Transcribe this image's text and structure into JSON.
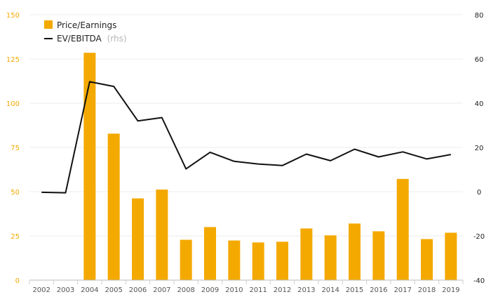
{
  "chart_data": {
    "type": "bar",
    "categories": [
      "2002",
      "2003",
      "2004",
      "2005",
      "2006",
      "2007",
      "2008",
      "2009",
      "2010",
      "2011",
      "2012",
      "2013",
      "2014",
      "2015",
      "2016",
      "2017",
      "2018",
      "2019"
    ],
    "series": [
      {
        "name": "Price/Earnings",
        "type": "bar",
        "axis": "left",
        "color": "#f4a900",
        "values": [
          0,
          0,
          128.5,
          82.8,
          46.2,
          51.2,
          22.8,
          30.0,
          22.4,
          21.3,
          21.7,
          29.2,
          25.3,
          32.0,
          27.6,
          57.2,
          23.2,
          26.8
        ]
      },
      {
        "name": "EV/EBITDA",
        "type": "line",
        "axis": "right",
        "color": "#111111",
        "values": [
          -0.3,
          -0.5,
          49.7,
          47.6,
          32.0,
          33.5,
          10.3,
          17.8,
          13.7,
          12.5,
          11.8,
          17.0,
          14.0,
          19.2,
          15.7,
          18.0,
          14.8,
          16.8
        ]
      }
    ],
    "legend": {
      "items": [
        {
          "label": "Price/Earnings",
          "note": ""
        },
        {
          "label": "EV/EBITDA",
          "note": "(rhs)"
        }
      ],
      "position": "top-left"
    },
    "ylim_left": [
      0,
      150
    ],
    "yticks_left": [
      0,
      25,
      50,
      75,
      100,
      125,
      150
    ],
    "ylim_right": [
      -40,
      80
    ],
    "yticks_right": [
      -40,
      -20,
      0,
      20,
      40,
      60,
      80
    ],
    "left_tick_color": "#f4a900",
    "right_tick_color": "#222222",
    "grid": "horizontal",
    "title": "",
    "xlabel": "",
    "ylabel": ""
  }
}
